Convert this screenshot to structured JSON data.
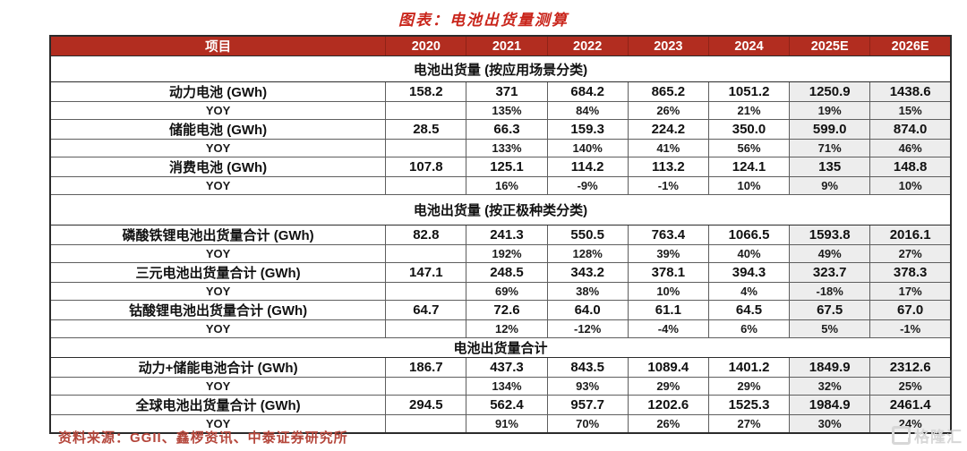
{
  "title": "图表：电池出货量测算",
  "colors": {
    "header-bg": "#B22D20",
    "header-sep": "#8F2317",
    "title-red": "#C9251B",
    "footer-red": "#B5473C",
    "est-bg": "#EDEDED",
    "grid": "#5E5E5E",
    "grid-dark": "#2B2B2B",
    "watermark": "#D7D7D7"
  },
  "table": {
    "columns": [
      "项目",
      "2020",
      "2021",
      "2022",
      "2023",
      "2024",
      "2025E",
      "2026E"
    ],
    "estimate_columns": [
      "2025E",
      "2026E"
    ],
    "sections": [
      {
        "header": "电池出货量 (按应用场景分类)",
        "rows": [
          {
            "label": "动力电池 (GWh)",
            "values": [
              "158.2",
              "371",
              "684.2",
              "865.2",
              "1051.2",
              "1250.9",
              "1438.6"
            ]
          },
          {
            "label": "YOY",
            "values": [
              "",
              "135%",
              "84%",
              "26%",
              "21%",
              "19%",
              "15%"
            ]
          },
          {
            "label": "储能电池 (GWh)",
            "values": [
              "28.5",
              "66.3",
              "159.3",
              "224.2",
              "350.0",
              "599.0",
              "874.0"
            ]
          },
          {
            "label": "YOY",
            "values": [
              "",
              "133%",
              "140%",
              "41%",
              "56%",
              "71%",
              "46%"
            ]
          },
          {
            "label": "消费电池 (GWh)",
            "values": [
              "107.8",
              "125.1",
              "114.2",
              "113.2",
              "124.1",
              "135",
              "148.8"
            ]
          },
          {
            "label": "YOY",
            "values": [
              "",
              "16%",
              "-9%",
              "-1%",
              "10%",
              "9%",
              "10%"
            ]
          }
        ]
      },
      {
        "header": "电池出货量 (按正极种类分类)",
        "rows": [
          {
            "label": "磷酸铁锂电池出货量合计 (GWh)",
            "values": [
              "82.8",
              "241.3",
              "550.5",
              "763.4",
              "1066.5",
              "1593.8",
              "2016.1"
            ]
          },
          {
            "label": "YOY",
            "values": [
              "",
              "192%",
              "128%",
              "39%",
              "40%",
              "49%",
              "27%"
            ]
          },
          {
            "label": "三元电池出货量合计 (GWh)",
            "values": [
              "147.1",
              "248.5",
              "343.2",
              "378.1",
              "394.3",
              "323.7",
              "378.3"
            ]
          },
          {
            "label": "YOY",
            "values": [
              "",
              "69%",
              "38%",
              "10%",
              "4%",
              "-18%",
              "17%"
            ]
          },
          {
            "label": "钴酸锂电池出货量合计 (GWh)",
            "values": [
              "64.7",
              "72.6",
              "64.0",
              "61.1",
              "64.5",
              "67.5",
              "67.0"
            ]
          },
          {
            "label": "YOY",
            "values": [
              "",
              "12%",
              "-12%",
              "-4%",
              "6%",
              "5%",
              "-1%"
            ]
          }
        ]
      },
      {
        "header": "电池出货量合计",
        "rows": [
          {
            "label": "动力+储能电池合计 (GWh)",
            "values": [
              "186.7",
              "437.3",
              "843.5",
              "1089.4",
              "1401.2",
              "1849.9",
              "2312.6"
            ]
          },
          {
            "label": "YOY",
            "values": [
              "",
              "134%",
              "93%",
              "29%",
              "29%",
              "32%",
              "25%"
            ]
          },
          {
            "label": "全球电池出货量合计 (GWh)",
            "values": [
              "294.5",
              "562.4",
              "957.7",
              "1202.6",
              "1525.3",
              "1984.9",
              "2461.4"
            ]
          },
          {
            "label": "YOY",
            "values": [
              "",
              "91%",
              "70%",
              "26%",
              "27%",
              "30%",
              "24%"
            ]
          }
        ]
      }
    ]
  },
  "footer": {
    "source": "资料来源：GGII、鑫椤资讯、中泰证券研究所"
  },
  "watermark": {
    "logo_icon": "gelonghui-logo",
    "text": "格隆汇"
  }
}
